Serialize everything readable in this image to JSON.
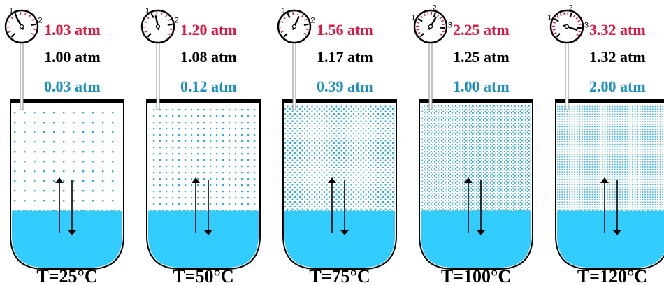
{
  "colors": {
    "total_pressure": "#e0143c",
    "air_pressure": "#000000",
    "vapor_pressure": "#1a8fbf",
    "liquid": "#33ccff",
    "vapor_dot": "#33aadd",
    "gauge_tick": "#e0143c"
  },
  "panels": [
    {
      "id": "p25",
      "temperature_label": "T=25°C",
      "total_pressure": "1.03 atm",
      "air_pressure": "1.00 atm",
      "vapor_pressure": "0.03 atm",
      "gauge_numbers": [
        "1",
        "2"
      ],
      "gauge_total_atm": 1.03,
      "vapor_density_level": 1
    },
    {
      "id": "p50",
      "temperature_label": "T=50°C",
      "total_pressure": "1.20 atm",
      "air_pressure": "1.08 atm",
      "vapor_pressure": "0.12 atm",
      "gauge_numbers": [
        "1",
        "2"
      ],
      "gauge_total_atm": 1.2,
      "vapor_density_level": 2
    },
    {
      "id": "p75",
      "temperature_label": "T=75°C",
      "total_pressure": "1.56 atm",
      "air_pressure": "1.17 atm",
      "vapor_pressure": "0.39 atm",
      "gauge_numbers": [
        "1",
        "2"
      ],
      "gauge_total_atm": 1.56,
      "vapor_density_level": 3
    },
    {
      "id": "p100",
      "temperature_label": "T=100°C",
      "total_pressure": "2.25 atm",
      "air_pressure": "1.25 atm",
      "vapor_pressure": "1.00 atm",
      "gauge_numbers": [
        "1",
        "2",
        "3"
      ],
      "gauge_total_atm": 2.25,
      "vapor_density_level": 4
    },
    {
      "id": "p120",
      "temperature_label": "T=120°C",
      "total_pressure": "3.32 atm",
      "air_pressure": "1.32 atm",
      "vapor_pressure": "2.00 atm",
      "gauge_numbers": [
        "1",
        "2",
        "3"
      ],
      "gauge_total_atm": 3.32,
      "vapor_density_level": 5
    }
  ]
}
